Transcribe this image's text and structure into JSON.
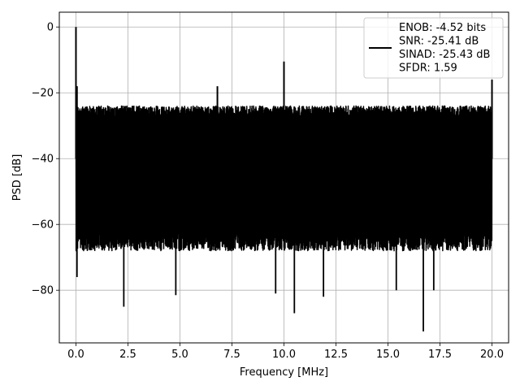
{
  "chart_data": {
    "type": "line",
    "xlabel": "Frequency [MHz]",
    "ylabel": "PSD [dB]",
    "xlim": [
      -0.8,
      20.8
    ],
    "ylim": [
      -96,
      4.5
    ],
    "xticks": [
      0.0,
      2.5,
      5.0,
      7.5,
      10.0,
      12.5,
      15.0,
      17.5,
      20.0
    ],
    "xtick_labels": [
      "0.0",
      "2.5",
      "5.0",
      "7.5",
      "10.0",
      "12.5",
      "15.0",
      "17.5",
      "20.0"
    ],
    "yticks": [
      0,
      -20,
      -40,
      -60,
      -80
    ],
    "ytick_labels": [
      "0",
      "−20",
      "−40",
      "−60",
      "−80"
    ],
    "grid": true,
    "legend_position": "top-right",
    "series": [
      {
        "name": "ENOB: -4.52 bits\nSNR: -25.41 dB\nSINAD: -25.43 dB\nSFDR: 1.59",
        "color": "#000000",
        "noise_floor_top_db": -24,
        "noise_floor_bottom_db": -62,
        "peaks": [
          {
            "x": 0.0,
            "y": 0.0
          },
          {
            "x": 0.05,
            "y": -18
          },
          {
            "x": 6.8,
            "y": -18
          },
          {
            "x": 10.0,
            "y": -10.5
          },
          {
            "x": 20.0,
            "y": -16
          }
        ],
        "dips": [
          {
            "x": 0.05,
            "y": -76
          },
          {
            "x": 2.3,
            "y": -85
          },
          {
            "x": 4.8,
            "y": -81.5
          },
          {
            "x": 9.6,
            "y": -81
          },
          {
            "x": 10.5,
            "y": -87
          },
          {
            "x": 11.9,
            "y": -82
          },
          {
            "x": 15.4,
            "y": -80
          },
          {
            "x": 16.7,
            "y": -92.5
          },
          {
            "x": 17.2,
            "y": -80
          }
        ]
      }
    ]
  },
  "legend": {
    "lines": [
      "ENOB: -4.52 bits",
      "SNR: -25.41 dB",
      "SINAD: -25.43 dB",
      "SFDR: 1.59"
    ]
  }
}
